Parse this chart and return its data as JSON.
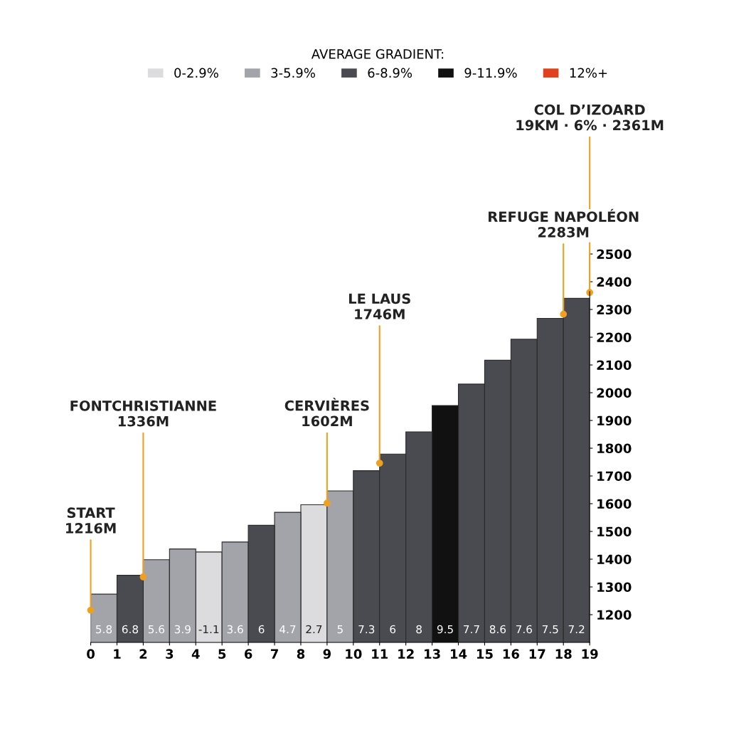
{
  "chart_data": {
    "type": "bar",
    "legend_title": "AVERAGE GRADIENT:",
    "x": [
      0,
      1,
      2,
      3,
      4,
      5,
      6,
      7,
      8,
      9,
      10,
      11,
      12,
      13,
      14,
      15,
      16,
      17,
      18
    ],
    "series": [
      {
        "name": "0-2.9%",
        "color": "#dcdcde",
        "values": [
          null,
          null,
          null,
          null,
          1426,
          null,
          null,
          null,
          1596,
          null,
          null,
          null,
          null,
          null,
          null,
          null,
          null,
          null,
          null
        ]
      },
      {
        "name": "3-5.9%",
        "color": "#a3a3aa",
        "values": [
          1274,
          null,
          1398,
          1437,
          null,
          1462,
          null,
          1569,
          null,
          1646,
          null,
          null,
          null,
          null,
          null,
          null,
          null,
          null,
          null
        ]
      },
      {
        "name": "6-8.9%",
        "color": "#4a4b50",
        "values": [
          null,
          1342,
          null,
          null,
          null,
          null,
          1522,
          null,
          null,
          null,
          1719,
          1779,
          1859,
          null,
          2031,
          2117,
          2193,
          2268,
          2340
        ]
      },
      {
        "name": "9-11.9%",
        "color": "#111111",
        "values": [
          null,
          null,
          null,
          null,
          null,
          null,
          null,
          null,
          null,
          null,
          null,
          null,
          null,
          1954,
          null,
          null,
          null,
          null,
          null
        ]
      },
      {
        "name": "12%+",
        "color": "#e0401c",
        "values": [
          null,
          null,
          null,
          null,
          null,
          null,
          null,
          null,
          null,
          null,
          null,
          null,
          null,
          null,
          null,
          null,
          null,
          null,
          null
        ]
      }
    ],
    "value_labels": [
      "5.8",
      "6.8",
      "5.6",
      "3.9",
      "-1.1",
      "3.6",
      "6",
      "4.7",
      "2.7",
      "5",
      "7.3",
      "6",
      "8",
      "9.5",
      "7.7",
      "8.6",
      "7.6",
      "7.5",
      "7.2"
    ],
    "annotations": [
      {
        "text": "START\n1216M",
        "x": 0,
        "y": 1216
      },
      {
        "text": "FONTCHRISTIANNE\n1336M",
        "x": 2,
        "y": 1336
      },
      {
        "text": "CERVIÈRES\n1602M",
        "x": 9,
        "y": 1602
      },
      {
        "text": "LE LAUS\n1746M",
        "x": 11,
        "y": 1746
      },
      {
        "text": "REFUGE NAPOLÉON\n2283M",
        "x": 18,
        "y": 2283
      },
      {
        "text": "COL D’IZOARD\n19KM · 6% · 2361M",
        "x": 19,
        "y": 2361
      }
    ],
    "xlim": [
      0,
      19
    ],
    "xticks": [
      0,
      1,
      2,
      3,
      4,
      5,
      6,
      7,
      8,
      9,
      10,
      11,
      12,
      13,
      14,
      15,
      16,
      17,
      18,
      19
    ],
    "ylim": [
      1100,
      2500
    ],
    "yticks": [
      1200,
      1300,
      1400,
      1500,
      1600,
      1700,
      1800,
      1900,
      2000,
      2100,
      2200,
      2300,
      2400,
      2500
    ],
    "legend": "top"
  }
}
